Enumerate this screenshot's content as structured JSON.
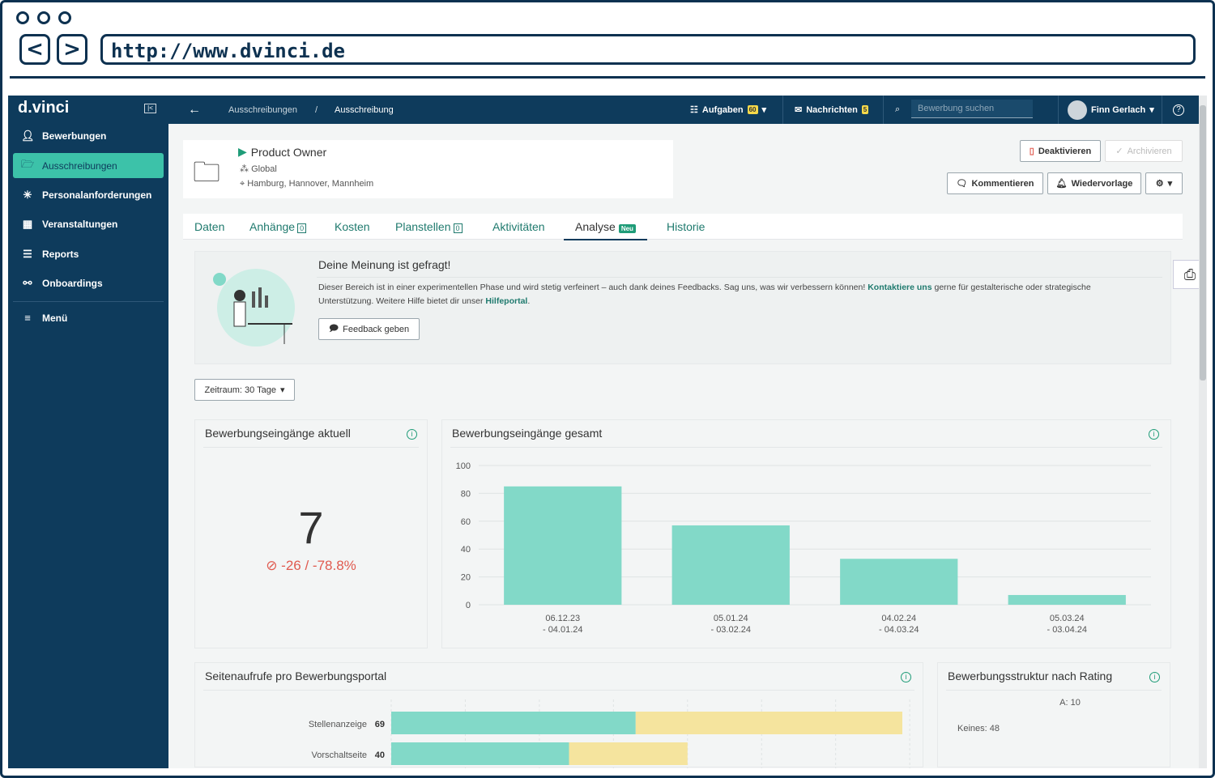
{
  "browser": {
    "url": "http://www.dvinci.de",
    "back": "<",
    "forward": ">"
  },
  "sidebar": {
    "logo": "d.vinci",
    "items": [
      {
        "label": "Bewerbungen",
        "icon": "user-icon"
      },
      {
        "label": "Ausschreibungen",
        "icon": "folder-icon"
      },
      {
        "label": "Personalanforderungen",
        "icon": "asterisk-icon"
      },
      {
        "label": "Veranstaltungen",
        "icon": "calendar-icon"
      },
      {
        "label": "Reports",
        "icon": "report-icon"
      },
      {
        "label": "Onboardings",
        "icon": "handshake-icon"
      }
    ],
    "menu": "Menü"
  },
  "topbar": {
    "breadcrumb": [
      "Ausschreibungen",
      "Ausschreibung"
    ],
    "breadcrumb_sep": "/",
    "tasks": "Aufgaben",
    "tasks_count": "60",
    "messages": "Nachrichten",
    "messages_count": "5",
    "search_placeholder": "Bewerbung suchen",
    "user": "Finn Gerlach"
  },
  "job": {
    "title": "Product Owner",
    "org": "Global",
    "locations": "Hamburg, Hannover, Mannheim"
  },
  "actions": {
    "deactivate": "Deaktivieren",
    "archive": "Archivieren",
    "comment": "Kommentieren",
    "followup": "Wiedervorlage"
  },
  "tabs": [
    {
      "label": "Daten"
    },
    {
      "label": "Anhänge",
      "count": "0"
    },
    {
      "label": "Kosten"
    },
    {
      "label": "Planstellen",
      "count": "0"
    },
    {
      "label": "Aktivitäten"
    },
    {
      "label": "Analyse",
      "badge": "Neu"
    },
    {
      "label": "Historie"
    }
  ],
  "feedback": {
    "title": "Deine Meinung ist gefragt!",
    "text1": "Dieser Bereich ist in einer experimentellen Phase und wird stetig verfeinert – auch dank deines Feedbacks. Sag uns, was wir verbessern können! ",
    "link1": "Kontaktiere uns",
    "text2": " gerne für gestalterische oder strategische Unterstützung. Weitere Hilfe bietet dir unser ",
    "link2": "Hilfeportal",
    "text3": ".",
    "button": "Feedback geben"
  },
  "period": "Zeitraum: 30 Tage",
  "current": {
    "title": "Bewerbungseingänge aktuell",
    "value": "7",
    "change": "-26 / -78.8%"
  },
  "colors": {
    "teal": "#82d9c8",
    "yellow": "#f5e49e",
    "blue": "#74b9ef",
    "navy": "#0e3b5c",
    "red": "#e05a4f"
  },
  "chart_data": [
    {
      "type": "bar",
      "title": "Bewerbungseingänge gesamt",
      "categories": [
        [
          "06.12.23",
          "- 04.01.24"
        ],
        [
          "05.01.24",
          "- 03.02.24"
        ],
        [
          "04.02.24",
          "- 04.03.24"
        ],
        [
          "05.03.24",
          "- 03.04.24"
        ]
      ],
      "values": [
        85,
        57,
        33,
        7
      ],
      "ylim": [
        0,
        100
      ],
      "yticks": [
        0,
        20,
        40,
        60,
        80,
        100
      ],
      "grid": true
    },
    {
      "type": "bar",
      "orientation": "horizontal",
      "stacked": true,
      "title": "Seitenaufrufe pro Bewerbungsportal",
      "categories": [
        "Stellenanzeige",
        "Vorschaltseite"
      ],
      "totals": [
        69,
        40
      ],
      "series": [
        {
          "name": "teal",
          "values": [
            33,
            24
          ]
        },
        {
          "name": "yellow",
          "values": [
            36,
            16
          ]
        }
      ],
      "xlim": [
        0,
        70
      ]
    },
    {
      "type": "pie",
      "title": "Bewerbungsstruktur nach Rating",
      "labels": [
        "Keines: 48",
        "A: 10"
      ],
      "values": [
        48,
        10
      ]
    }
  ]
}
